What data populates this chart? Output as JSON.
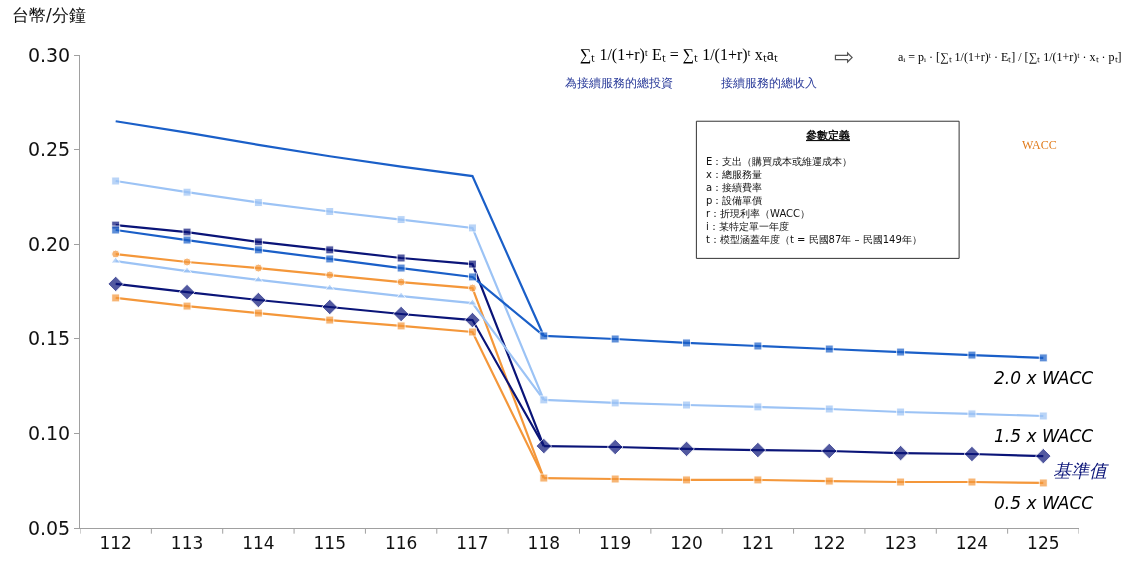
{
  "chart_data": {
    "type": "line",
    "ylabel": "台幣/分鐘",
    "categories": [
      "112",
      "113",
      "114",
      "115",
      "116",
      "117",
      "118",
      "119",
      "120",
      "121",
      "122",
      "123",
      "124",
      "125"
    ],
    "ylim": [
      0.05,
      0.3
    ],
    "yticks": [
      {
        "value": 0.05,
        "label": "0.05"
      },
      {
        "value": 0.1,
        "label": "0.10"
      },
      {
        "value": 0.15,
        "label": "0.15"
      },
      {
        "value": 0.2,
        "label": "0.20"
      },
      {
        "value": 0.25,
        "label": "0.25"
      },
      {
        "value": 0.3,
        "label": "0.30"
      }
    ],
    "legend": false,
    "line_style": "solid",
    "series": [
      {
        "color": "#1a5fc8",
        "marker": "none",
        "values": [
          0.265,
          0.259,
          0.2525,
          0.2465,
          0.241,
          0.236,
          0.1515,
          null,
          null,
          null,
          null,
          null,
          null,
          null
        ]
      },
      {
        "color": "#9cc3f5",
        "marker": "square",
        "values": [
          0.2334,
          0.2275,
          0.222,
          0.2173,
          0.213,
          0.2086,
          0.1177,
          null,
          null,
          null,
          null,
          null,
          null,
          null
        ]
      },
      {
        "color": "#0a1478",
        "marker": "square",
        "values": [
          0.2101,
          0.2064,
          0.2012,
          0.197,
          0.1927,
          0.1895,
          0.0933,
          null,
          null,
          null,
          null,
          null,
          null,
          null
        ]
      },
      {
        "color": "#1a5fc8",
        "marker": "square",
        "values": [
          0.2075,
          0.2022,
          0.197,
          0.1922,
          0.1874,
          0.1827,
          0.1515,
          null,
          null,
          null,
          null,
          null,
          null,
          null
        ]
      },
      {
        "color": "#f4973a",
        "marker": "circle",
        "values": [
          0.1948,
          0.1906,
          0.1874,
          0.1837,
          0.18,
          0.1768,
          0.0764,
          null,
          null,
          null,
          null,
          null,
          null,
          null
        ]
      },
      {
        "color": "#9cc3f5",
        "marker": "triangle",
        "values": [
          0.1911,
          0.1858,
          0.1811,
          0.1768,
          0.1726,
          0.1689,
          0.1177,
          null,
          null,
          null,
          null,
          null,
          null,
          null
        ]
      },
      {
        "color": "#0a1478",
        "marker": "diamond",
        "values": [
          0.179,
          0.1747,
          0.1705,
          0.1668,
          0.1631,
          0.1599,
          0.0933,
          null,
          null,
          null,
          null,
          null,
          null,
          null
        ]
      },
      {
        "color": "#f4973a",
        "marker": "square",
        "values": [
          0.1716,
          0.1673,
          0.1636,
          0.1599,
          0.1568,
          0.1536,
          0.0764,
          null,
          null,
          null,
          null,
          null,
          null,
          null
        ]
      },
      {
        "name": "2.0 x WACC",
        "color": "#1a5fc8",
        "marker": "square",
        "values": [
          null,
          null,
          null,
          null,
          null,
          null,
          0.1515,
          0.1499,
          0.1478,
          0.1462,
          0.1446,
          0.143,
          0.1414,
          0.1399
        ]
      },
      {
        "name": "1.5 x WACC",
        "color": "#9cc3f5",
        "marker": "square",
        "values": [
          null,
          null,
          null,
          null,
          null,
          null,
          0.1177,
          0.1161,
          0.115,
          0.114,
          0.1129,
          0.1113,
          0.1103,
          0.1092
        ]
      },
      {
        "name": "基準值",
        "color": "#0a1478",
        "marker": "diamond",
        "values": [
          null,
          null,
          null,
          null,
          null,
          null,
          0.0933,
          0.0928,
          0.0918,
          0.0912,
          0.0907,
          0.0896,
          0.0891,
          0.088
        ]
      },
      {
        "name": "0.5 x WACC",
        "color": "#f4973a",
        "marker": "square",
        "values": [
          null,
          null,
          null,
          null,
          null,
          null,
          0.0764,
          0.0759,
          0.0754,
          0.0754,
          0.0748,
          0.0743,
          0.0743,
          0.0738
        ]
      }
    ],
    "annotations": [
      "∑ₜ 1/(1+r)ᵗ Eₜ = ∑ₜ 1/(1+r)ᵗ xₜaₜ",
      "為接續服務的總投資",
      "接續服務的總收入",
      "⇨",
      "aᵢ = pᵢ · [∑ₜ 1/(1+r)ᵗ · Eₜ] / [∑ₜ 1/(1+r)ᵗ · xₜ · pₜ]",
      "WACC",
      "參數定義",
      "E：支出（購買成本或維運成本）\nx：總服務量\na：接續費率\np：設備單價\nr：折現利率（WACC）\ni：某特定單一年度\nt：模型涵蓋年度（t = 民國87年 – 民國149年）"
    ]
  }
}
